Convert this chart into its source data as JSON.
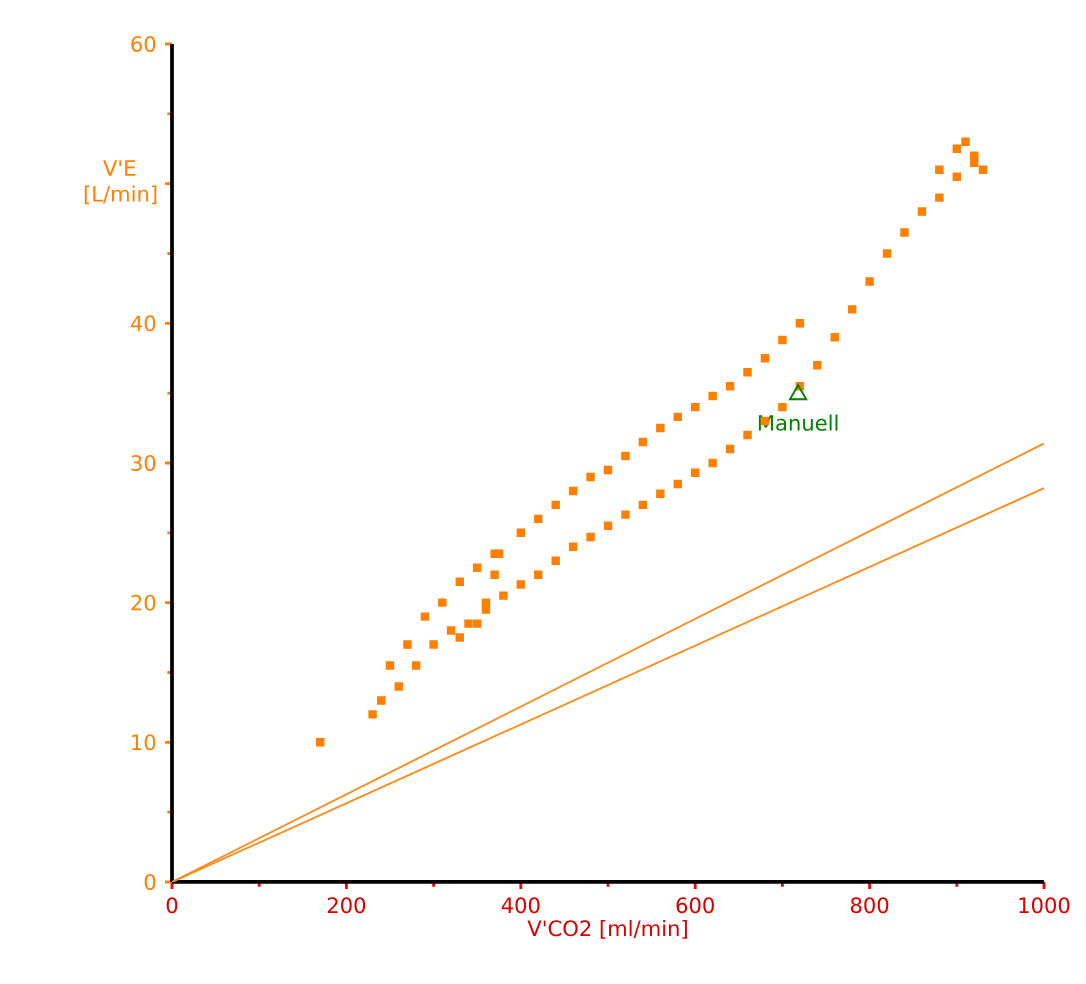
{
  "chart_data": {
    "type": "scatter",
    "xlabel": "V'CO2  [ml/min]",
    "ylabel": "V'E [L/min]",
    "xlim": [
      0,
      1000
    ],
    "ylim": [
      0,
      60
    ],
    "xticks": [
      0,
      200,
      400,
      600,
      800,
      1000
    ],
    "yticks": [
      0,
      10,
      20,
      30,
      40,
      {
        "value": 50,
        "label": null
      },
      60
    ],
    "grid": false,
    "series": [
      {
        "color": "#ff8000",
        "marker": "square",
        "x": [
          170,
          230,
          240,
          260,
          280,
          300,
          320,
          340,
          360,
          380,
          400,
          420,
          440,
          460,
          480,
          500,
          520,
          540,
          560,
          580,
          600,
          620,
          640,
          660,
          680,
          700,
          720,
          740,
          760,
          780,
          800,
          820,
          840,
          860,
          880,
          900,
          920,
          250,
          270,
          290,
          310,
          330,
          350,
          370,
          400,
          420,
          440,
          460,
          480,
          500,
          520,
          540,
          560,
          580,
          600,
          620,
          640,
          660,
          680,
          700,
          720,
          330,
          350,
          360,
          370,
          375,
          880,
          900,
          910,
          920,
          930
        ],
        "values": [
          10,
          12,
          13,
          14,
          15.5,
          17,
          18,
          18.5,
          19.5,
          20.5,
          21.3,
          22,
          23,
          24,
          24.7,
          25.5,
          26.3,
          27,
          27.8,
          28.5,
          29.3,
          30,
          31,
          32,
          33,
          34,
          35.5,
          37,
          39,
          41,
          43,
          45,
          46.5,
          48,
          49,
          50.5,
          51.5,
          15.5,
          17,
          19,
          20,
          21.5,
          22.5,
          23.5,
          25,
          26,
          27,
          28,
          29,
          29.5,
          30.5,
          31.5,
          32.5,
          33.3,
          34,
          34.8,
          35.5,
          36.5,
          37.5,
          38.8,
          40,
          17.5,
          18.5,
          20,
          22,
          23.5,
          51,
          52.5,
          53,
          52,
          51
        ]
      },
      {
        "name": "Manuell",
        "color": "#008000",
        "marker": "triangle",
        "x": [
          718
        ],
        "values": [
          34.9
        ]
      },
      {
        "type": "line",
        "color": "#ff8c1a",
        "marker": "none",
        "x": [
          0,
          1000
        ],
        "values": [
          0,
          28.2
        ]
      },
      {
        "type": "line",
        "color": "#ff8c1a",
        "marker": "none",
        "x": [
          0,
          1000
        ],
        "values": [
          0,
          31.4
        ]
      }
    ]
  }
}
